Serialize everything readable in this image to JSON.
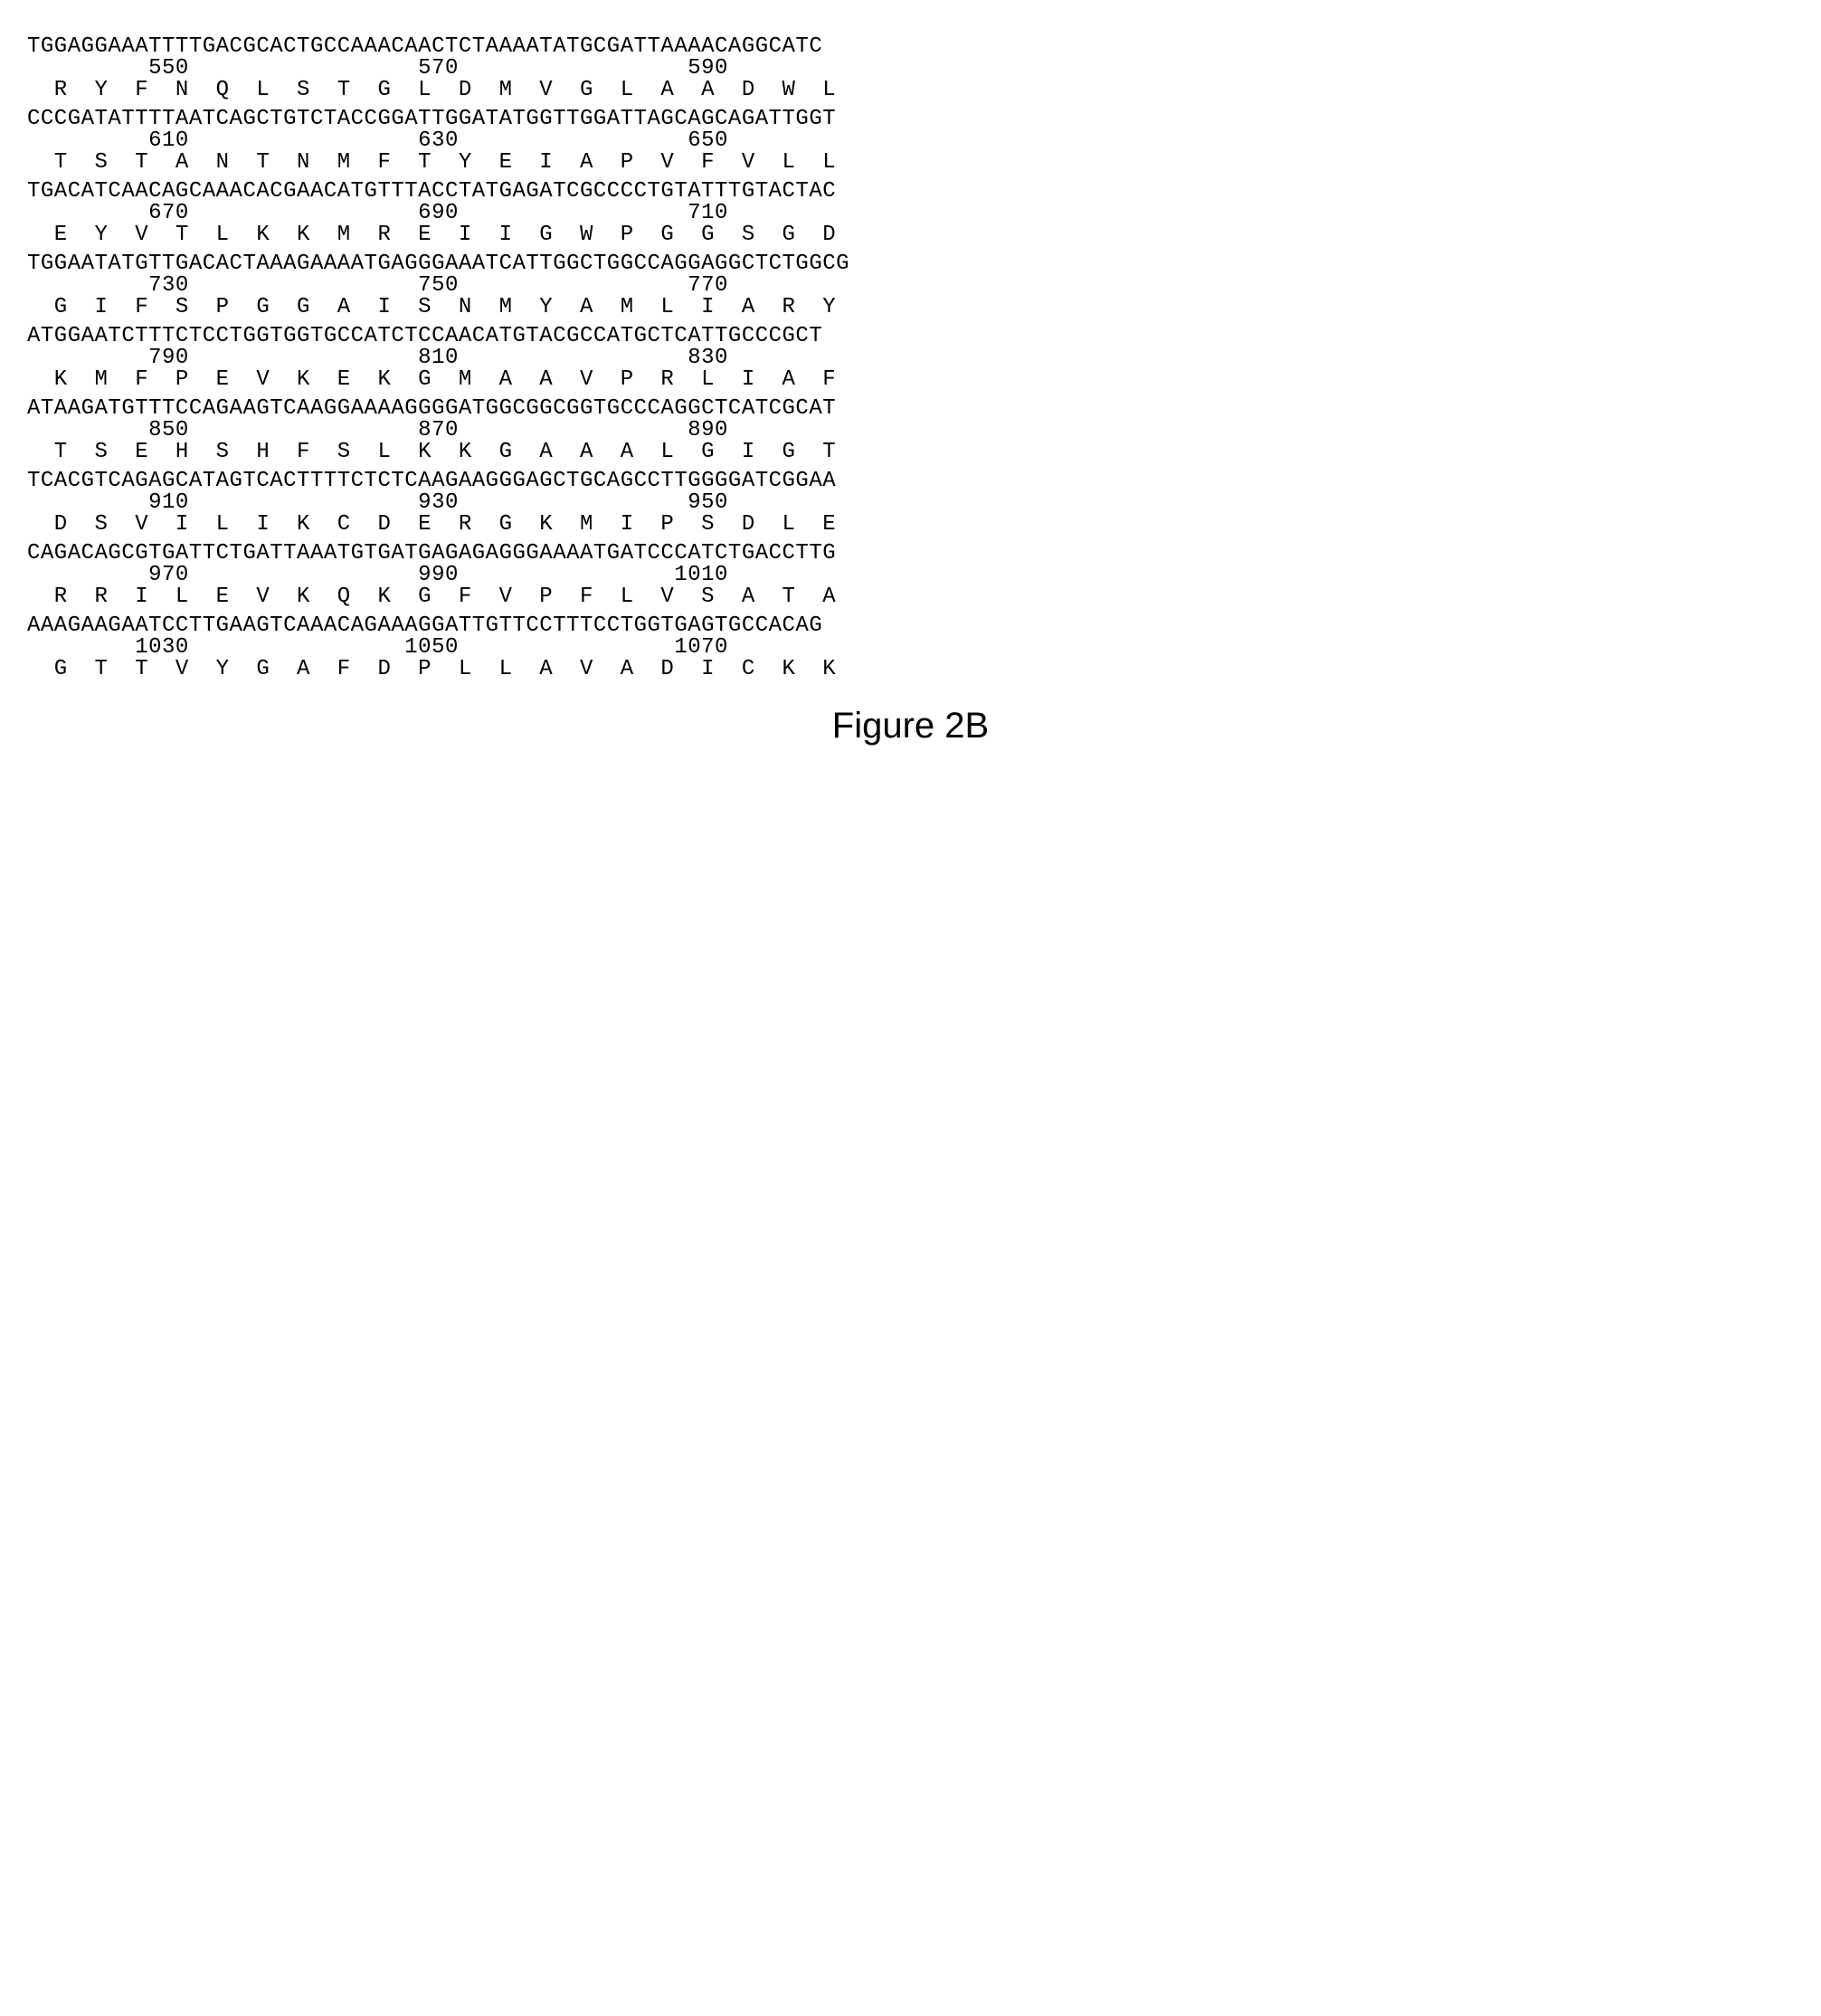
{
  "figure_caption": "Figure 2B",
  "font": {
    "sequence_family": "Courier New, monospace",
    "sequence_size_pt": 24,
    "caption_family": "Arial, sans-serif",
    "caption_size_pt": 40,
    "text_color": "#000000",
    "background_color": "#ffffff"
  },
  "layout": {
    "type": "sequence-alignment",
    "rows_per_block": 3,
    "blocks": 9,
    "chars_per_dna_line": 60,
    "aa_spacing": "one-letter per codon, two spaces between"
  },
  "blocks": [
    {
      "dna": "TGGAGGAAATTTTGACGCACTGCCAAACAACTCTAAAATATGCGATTAAAACAGGCATC",
      "pos": "         550                 570                 590",
      "aa": "  R  Y  F  N  Q  L  S  T  G  L  D  M  V  G  L  A  A  D  W  L"
    },
    {
      "dna": "CCCGATATTTTAATCAGCTGTCTACCGGATTGGATATGGTTGGATTAGCAGCAGATTGGT",
      "pos": "         610                 630                 650",
      "aa": "  T  S  T  A  N  T  N  M  F  T  Y  E  I  A  P  V  F  V  L  L"
    },
    {
      "dna": "TGACATCAACAGCAAACACGAACATGTTTACCTATGAGATCGCCCCTGTATTTGTACTAC",
      "pos": "         670                 690                 710",
      "aa": "  E  Y  V  T  L  K  K  M  R  E  I  I  G  W  P  G  G  S  G  D"
    },
    {
      "dna": "TGGAATATGTTGACACTAAAGAAAATGAGGGAAATCATTGGCTGGCCAGGAGGCTCTGGCG",
      "pos": "         730                 750                 770",
      "aa": "  G  I  F  S  P  G  G  A  I  S  N  M  Y  A  M  L  I  A  R  Y"
    },
    {
      "dna": "ATGGAATCTTTCTCCTGGTGGTGCCATCTCCAACATGTACGCCATGCTCATTGCCCGCT",
      "pos": "         790                 810                 830",
      "aa": "  K  M  F  P  E  V  K  E  K  G  M  A  A  V  P  R  L  I  A  F"
    },
    {
      "dna": "ATAAGATGTTTCCAGAAGTCAAGGAAAAGGGGATGGCGGCGGTGCCCAGGCTCATCGCAT",
      "pos": "         850                 870                 890",
      "aa": "  T  S  E  H  S  H  F  S  L  K  K  G  A  A  A  L  G  I  G  T"
    },
    {
      "dna": "TCACGTCAGAGCATAGTCACTTTTCTCTCAAGAAGGGAGCTGCAGCCTTGGGGATCGGAA",
      "pos": "         910                 930                 950",
      "aa": "  D  S  V  I  L  I  K  C  D  E  R  G  K  M  I  P  S  D  L  E"
    },
    {
      "dna": "CAGACAGCGTGATTCTGATTAAATGTGATGAGAGAGGGAAAATGATCCCATCTGACCTTG",
      "pos": "         970                 990                1010",
      "aa": "  R  R  I  L  E  V  K  Q  K  G  F  V  P  F  L  V  S  A  T  A"
    },
    {
      "dna": "AAAGAAGAATCCTTGAAGTCAAACAGAAAGGATTGTTCCTTTCCTGGTGAGTGCCACAG",
      "pos": "        1030                1050                1070",
      "aa": "  G  T  T  V  Y  G  A  F  D  P  L  L  A  V  A  D  I  C  K  K"
    }
  ]
}
